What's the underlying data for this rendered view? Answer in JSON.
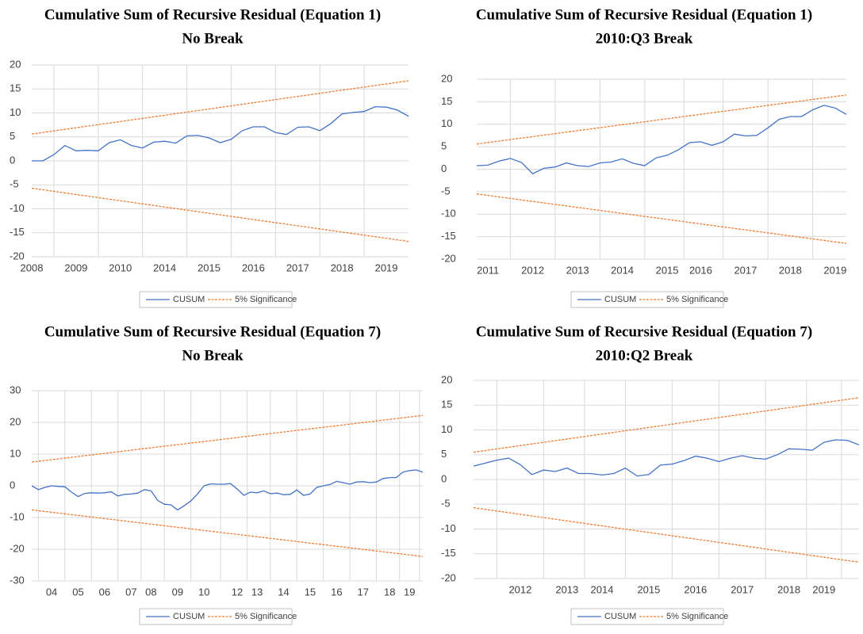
{
  "chart_data": [
    {
      "type": "line",
      "title": "Cumulative Sum of Recursive Residual (Equation 1)",
      "subtitle": "No Break",
      "categories": [
        "2008",
        null,
        null,
        null,
        "2009",
        null,
        null,
        null,
        "2010",
        null,
        null,
        null,
        "2014",
        null,
        null,
        null,
        "2015",
        null,
        null,
        null,
        "2016",
        null,
        null,
        null,
        "2017",
        null,
        null,
        null,
        "2018",
        null,
        null,
        null,
        "2019",
        null,
        null
      ],
      "series": [
        {
          "name": "CUSUM",
          "color": "#4472c4",
          "values": [
            0,
            0,
            1.3,
            3.2,
            2.1,
            2.2,
            2.1,
            3.8,
            4.4,
            3.2,
            2.7,
            3.9,
            4.1,
            3.7,
            5.2,
            5.3,
            4.8,
            3.8,
            4.5,
            6.3,
            7.1,
            7.1,
            5.9,
            5.5,
            7,
            7.1,
            6.3,
            7.8,
            9.8,
            10.1,
            10.3,
            11.3,
            11.2,
            10.6,
            9.3
          ]
        }
      ],
      "significance": {
        "name": "5% Significance",
        "color": "#ed7d31",
        "upper": [
          5.6,
          16.7
        ],
        "lower": [
          -5.7,
          -16.8
        ]
      },
      "ylim": [
        -20,
        20
      ],
      "yticks": [
        -20,
        -15,
        -10,
        -5,
        0,
        5,
        10,
        15,
        20
      ],
      "grid": true
    },
    {
      "type": "line",
      "title": "Cumulative Sum of Recursive Residual (Equation 1)",
      "subtitle": "2010:Q3 Break",
      "categories": [
        null,
        "2011",
        null,
        null,
        null,
        "2012",
        null,
        null,
        null,
        "2013",
        null,
        null,
        null,
        "2014",
        null,
        null,
        null,
        "2015",
        null,
        null,
        "2016",
        null,
        null,
        null,
        "2017",
        null,
        null,
        null,
        "2018",
        null,
        null,
        null,
        "2019",
        null
      ],
      "series": [
        {
          "name": "CUSUM",
          "color": "#4472c4",
          "values": [
            0.8,
            0.9,
            1.8,
            2.4,
            1.5,
            -1,
            0.2,
            0.5,
            1.4,
            0.8,
            0.6,
            1.4,
            1.6,
            2.3,
            1.3,
            0.8,
            2.5,
            3.1,
            4.3,
            5.9,
            6.1,
            5.3,
            6.1,
            7.8,
            7.4,
            7.5,
            9.2,
            11.1,
            11.7,
            11.7,
            13.2,
            14.2,
            13.6,
            12.2
          ]
        }
      ],
      "significance": {
        "name": "5% Significance",
        "color": "#ed7d31",
        "upper": [
          5.6,
          16.5
        ],
        "lower": [
          -5.5,
          -16.5
        ]
      },
      "ylim": [
        -20,
        20
      ],
      "yticks": [
        -20,
        -15,
        -10,
        -5,
        0,
        5,
        10,
        15,
        20
      ],
      "grid": true
    },
    {
      "type": "line",
      "title": "Cumulative Sum of Recursive Residual (Equation 7)",
      "subtitle": "No Break",
      "categories": [
        null,
        null,
        null,
        "04",
        null,
        null,
        null,
        "05",
        null,
        null,
        null,
        "06",
        null,
        null,
        null,
        "07",
        null,
        null,
        "08",
        null,
        null,
        null,
        "09",
        null,
        null,
        null,
        "10",
        null,
        null,
        null,
        null,
        "12",
        null,
        null,
        "13",
        null,
        null,
        null,
        "14",
        null,
        null,
        null,
        "15",
        null,
        null,
        null,
        "16",
        null,
        null,
        null,
        "17",
        null,
        null,
        null,
        "18",
        null,
        null,
        "19",
        null,
        null
      ],
      "series": [
        {
          "name": "CUSUM",
          "color": "#4472c4",
          "values": [
            0,
            -1.2,
            -0.5,
            0,
            -0.2,
            -0.3,
            -2,
            -3.4,
            -2.4,
            -2.2,
            -2.3,
            -2.2,
            -1.9,
            -3.2,
            -2.7,
            -2.6,
            -2.3,
            -1.2,
            -1.6,
            -4.6,
            -5.8,
            -6,
            -7.6,
            -6.3,
            -4.8,
            -2.6,
            0,
            0.6,
            0.5,
            0.5,
            0.7,
            -1,
            -3,
            -2,
            -2.2,
            -1.6,
            -2.5,
            -2.3,
            -2.8,
            -2.7,
            -1.3,
            -3,
            -2.6,
            -0.5,
            0,
            0.4,
            1.4,
            1,
            0.5,
            1.2,
            1.3,
            1,
            1.2,
            2.3,
            2.6,
            2.6,
            4.3,
            4.8,
            5,
            4.3
          ]
        }
      ],
      "significance": {
        "name": "5% Significance",
        "color": "#ed7d31",
        "upper": [
          7.5,
          22.2
        ],
        "lower": [
          -7.6,
          -22.3
        ]
      },
      "ylim": [
        -30,
        30
      ],
      "yticks": [
        -30,
        -20,
        -10,
        0,
        10,
        20,
        30
      ],
      "grid": true
    },
    {
      "type": "line",
      "title": "Cumulative Sum of Recursive Residual (Equation 7)",
      "subtitle": "2010:Q2 Break",
      "categories": [
        null,
        null,
        null,
        null,
        "2012",
        null,
        null,
        null,
        "2013",
        null,
        null,
        "2014",
        null,
        null,
        null,
        "2015",
        null,
        null,
        null,
        "2016",
        null,
        null,
        null,
        "2017",
        null,
        null,
        null,
        "2018",
        null,
        null,
        "2019",
        null,
        null,
        null
      ],
      "series": [
        {
          "name": "CUSUM",
          "color": "#4472c4",
          "values": [
            2.7,
            3.3,
            3.9,
            4.3,
            3,
            1,
            1.9,
            1.6,
            2.3,
            1.2,
            1.2,
            0.9,
            1.2,
            2.3,
            0.7,
            1,
            2.9,
            3.1,
            3.8,
            4.7,
            4.3,
            3.6,
            4.3,
            4.8,
            4.3,
            4.1,
            5,
            6.2,
            6.1,
            5.9,
            7.5,
            8,
            7.9,
            7
          ]
        }
      ],
      "significance": {
        "name": "5% Significance",
        "color": "#ed7d31",
        "upper": [
          5.5,
          16.5
        ],
        "lower": [
          -5.7,
          -16.7
        ]
      },
      "ylim": [
        -20,
        20
      ],
      "yticks": [
        -20,
        -15,
        -10,
        -5,
        0,
        5,
        10,
        15,
        20
      ],
      "grid": true
    }
  ]
}
